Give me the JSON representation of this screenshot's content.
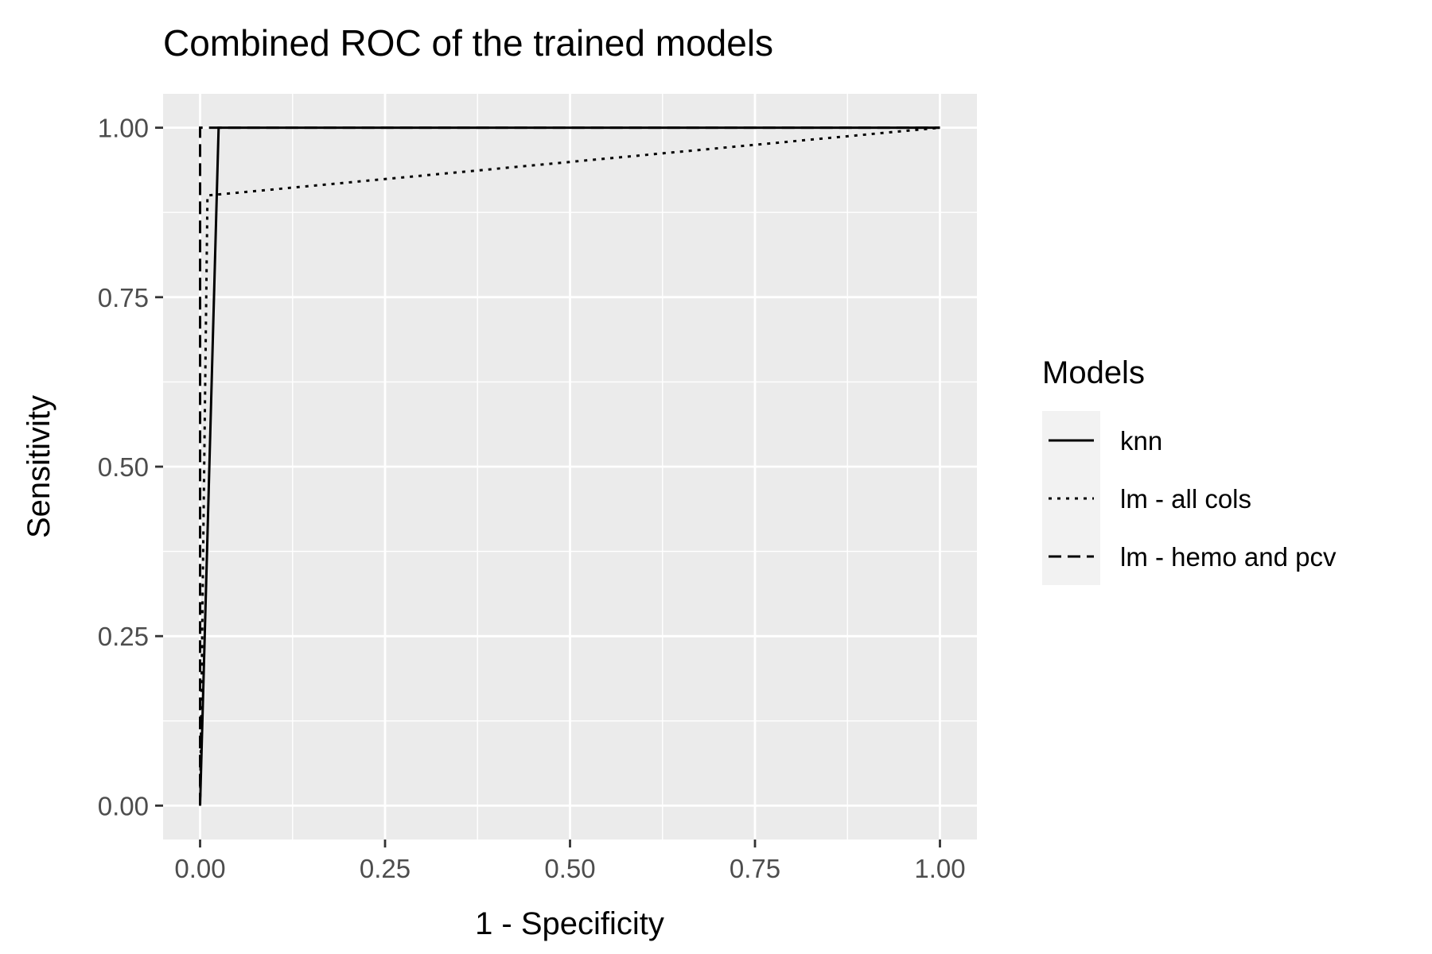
{
  "chart_data": {
    "type": "line",
    "title": "Combined ROC of the trained models",
    "xlabel": "1 - Specificity",
    "ylabel": "Sensitivity",
    "xlim": [
      -0.05,
      1.05
    ],
    "ylim": [
      -0.05,
      1.05
    ],
    "xticks": [
      "0.00",
      "0.25",
      "0.50",
      "0.75",
      "1.00"
    ],
    "yticks": [
      "0.00",
      "0.25",
      "0.50",
      "0.75",
      "1.00"
    ],
    "grid": true,
    "legend": {
      "title": "Models",
      "placement": "right"
    },
    "series": [
      {
        "name": "knn",
        "linestyle": "solid",
        "x": [
          0,
          0.025,
          1.0
        ],
        "y": [
          0,
          1.0,
          1.0
        ]
      },
      {
        "name": "lm - all cols",
        "linestyle": "dotted",
        "x": [
          0,
          0.01,
          1.0
        ],
        "y": [
          0,
          0.9,
          1.0
        ]
      },
      {
        "name": "lm - hemo and pcv",
        "linestyle": "dashed",
        "x": [
          0,
          0.0,
          1.0
        ],
        "y": [
          0,
          1.0,
          1.0
        ]
      }
    ],
    "colors": {
      "panel": "#ebebeb",
      "grid": "#ffffff",
      "line": "#000000",
      "legend_key": "#f2f2f2"
    }
  }
}
